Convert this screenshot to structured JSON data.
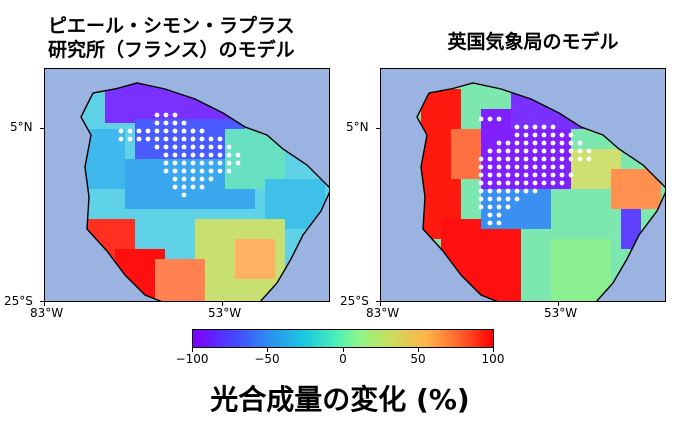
{
  "panels": [
    {
      "title_line1": "ピエール・シモン・ラプラス",
      "title_line2": "研究所（フランス）のモデル"
    },
    {
      "title": "英国気象局のモデル"
    }
  ],
  "axes": {
    "x_ticks": [
      "83°W",
      "53°W"
    ],
    "y_ticks": [
      "5°N",
      "25°S"
    ]
  },
  "colorbar": {
    "ticks": [
      "−100",
      "−50",
      "0",
      "50",
      "100"
    ],
    "label": "光合成量の変化 (%)",
    "colormap": "rainbow",
    "range": [
      -100,
      100
    ]
  },
  "colors": {
    "ocean": "#9bb3e0",
    "stipple": "#ffffff"
  }
}
